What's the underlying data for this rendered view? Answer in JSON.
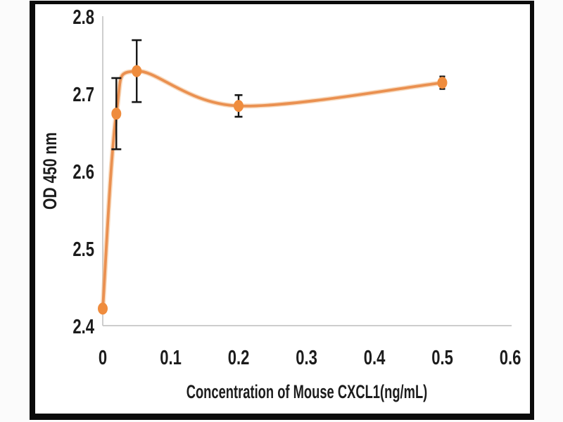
{
  "figure": {
    "background": "#fbfbfb",
    "frame_color": "#0b0b0b",
    "inner_background": "#ffffff"
  },
  "chart_data": {
    "type": "line",
    "title": "",
    "xlabel": "Concentration of Mouse CXCL1(ng/mL)",
    "ylabel": "OD 450 nm",
    "x": [
      0,
      0.02,
      0.05,
      0.2,
      0.5
    ],
    "series": [
      {
        "name": "OD 450 nm",
        "values": [
          2.422,
          2.674,
          2.729,
          2.684,
          2.714
        ],
        "errors": [
          0,
          0.046,
          0.04,
          0.014,
          0.008
        ]
      }
    ],
    "xticks": [
      "0",
      "0.1",
      "0.2",
      "0.3",
      "0.4",
      "0.5",
      "0.6"
    ],
    "xtick_values": [
      0,
      0.1,
      0.2,
      0.3,
      0.4,
      0.5,
      0.6
    ],
    "yticks": [
      "2.4",
      "2.5",
      "2.6",
      "2.7",
      "2.8"
    ],
    "ytick_values": [
      2.4,
      2.5,
      2.6,
      2.7,
      2.8
    ],
    "xlim": [
      0,
      0.6
    ],
    "ylim": [
      2.4,
      2.8
    ],
    "grid": false,
    "legend": "none",
    "smooth": true,
    "line_color": "#EA9050",
    "line_halo_color": "#F3BE8D",
    "marker_color": "#EF8C3D",
    "marker_shape": "diamond",
    "error_bar_color": "#151515",
    "axis_color": "#c6c6c6",
    "text_color": "#1c1c1c"
  }
}
